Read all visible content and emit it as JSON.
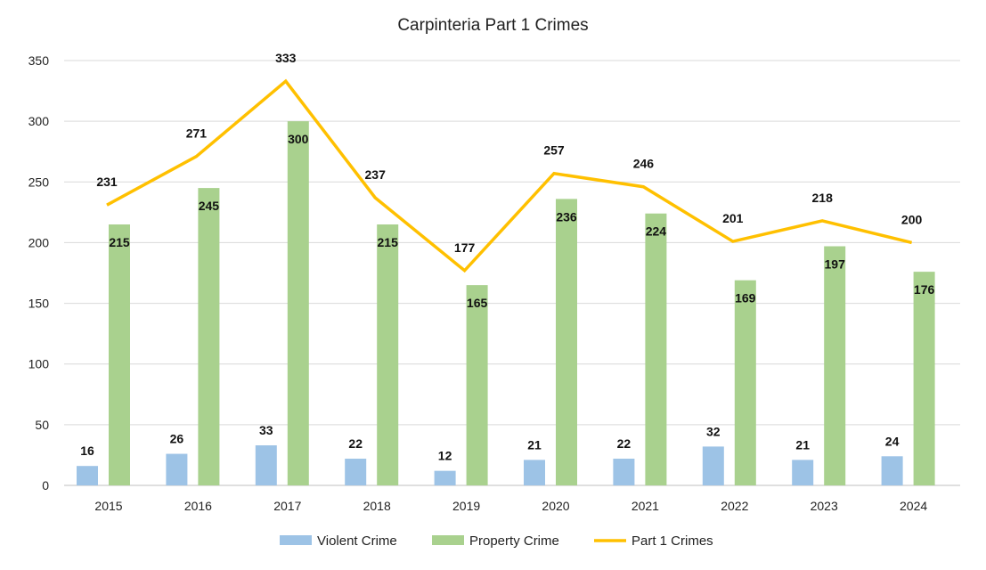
{
  "chart_data": {
    "type": "bar",
    "title": "Carpinteria Part 1 Crimes",
    "xlabel": "",
    "ylabel": "",
    "categories": [
      "2015",
      "2016",
      "2017",
      "2018",
      "2019",
      "2020",
      "2021",
      "2022",
      "2023",
      "2024"
    ],
    "ylim": [
      0,
      350
    ],
    "yticks": [
      0,
      50,
      100,
      150,
      200,
      250,
      300,
      350
    ],
    "grid": true,
    "legend_position": "bottom",
    "series": [
      {
        "name": "Violent Crime",
        "type": "bar",
        "color": "#9dc3e6",
        "values": [
          16,
          26,
          33,
          22,
          12,
          21,
          22,
          32,
          21,
          24
        ]
      },
      {
        "name": "Property Crime",
        "type": "bar",
        "color": "#a9d18e",
        "values": [
          215,
          245,
          300,
          215,
          165,
          236,
          224,
          169,
          197,
          176
        ]
      },
      {
        "name": "Part 1 Crimes",
        "type": "line",
        "color": "#ffc000",
        "values": [
          231,
          271,
          333,
          237,
          177,
          257,
          246,
          201,
          218,
          200
        ]
      }
    ]
  }
}
